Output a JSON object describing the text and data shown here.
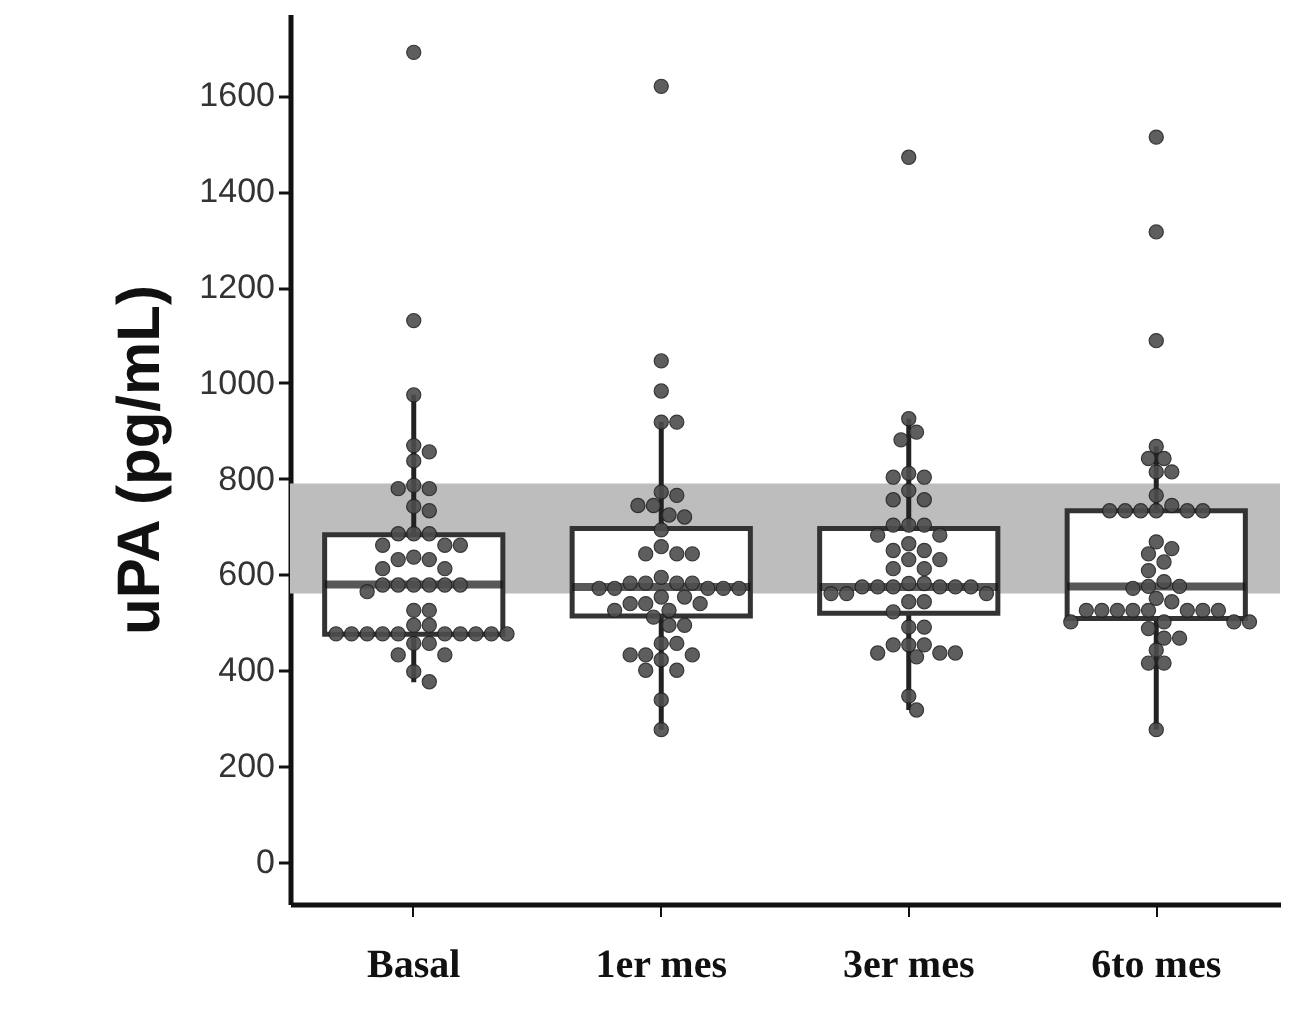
{
  "chart_data": {
    "type": "box",
    "ylabel": "uPA (pg/mL)",
    "categories": [
      "Basal",
      "1er mes",
      "3er mes",
      "6to mes"
    ],
    "boxes": [
      {
        "low": 375,
        "q1": 475,
        "median": 579,
        "q3": 683,
        "high": 975
      },
      {
        "low": 276,
        "q1": 513,
        "median": 574,
        "q3": 696,
        "high": 918
      },
      {
        "low": 317,
        "q1": 519,
        "median": 574,
        "q3": 696,
        "high": 925
      },
      {
        "low": 276,
        "q1": 508,
        "median": 575,
        "q3": 733,
        "high": 867
      }
    ],
    "series": [
      {
        "type": "scatter",
        "color": "#4d4d4d",
        "x": [
          "Basal",
          "Basal",
          "Basal",
          "Basal",
          "Basal",
          "Basal",
          "Basal",
          "Basal",
          "Basal",
          "Basal",
          "Basal",
          "Basal",
          "Basal",
          "Basal",
          "Basal",
          "Basal",
          "Basal",
          "Basal",
          "Basal",
          "Basal",
          "Basal",
          "Basal",
          "Basal",
          "Basal",
          "Basal",
          "Basal",
          "Basal",
          "Basal",
          "Basal",
          "Basal",
          "Basal",
          "Basal",
          "Basal",
          "Basal",
          "Basal",
          "Basal",
          "Basal",
          "Basal",
          "Basal",
          "Basal",
          "Basal",
          "Basal",
          "Basal",
          "Basal",
          "Basal",
          "Basal",
          "Basal",
          "Basal",
          "Basal"
        ],
        "values": [
          1690,
          1130,
          975,
          869,
          856,
          837,
          786,
          779,
          779,
          742,
          733,
          685,
          685,
          685,
          661,
          661,
          661,
          636,
          631,
          631,
          612,
          612,
          578,
          578,
          578,
          578,
          578,
          578,
          564,
          525,
          525,
          494,
          494,
          476,
          476,
          476,
          476,
          476,
          476,
          476,
          476,
          476,
          476,
          456,
          456,
          432,
          432,
          397,
          376
        ]
      },
      {
        "type": "scatter",
        "color": "#4d4d4d",
        "x": [
          "1er mes",
          "1er mes",
          "1er mes",
          "1er mes",
          "1er mes",
          "1er mes",
          "1er mes",
          "1er mes",
          "1er mes",
          "1er mes",
          "1er mes",
          "1er mes",
          "1er mes",
          "1er mes",
          "1er mes",
          "1er mes",
          "1er mes",
          "1er mes",
          "1er mes",
          "1er mes",
          "1er mes",
          "1er mes",
          "1er mes",
          "1er mes",
          "1er mes",
          "1er mes",
          "1er mes",
          "1er mes",
          "1er mes",
          "1er mes",
          "1er mes",
          "1er mes",
          "1er mes",
          "1er mes",
          "1er mes",
          "1er mes",
          "1er mes",
          "1er mes",
          "1er mes",
          "1er mes",
          "1er mes",
          "1er mes",
          "1er mes",
          "1er mes",
          "1er mes",
          "1er mes"
        ],
        "values": [
          1619,
          1046,
          983,
          918,
          918,
          772,
          765,
          744,
          744,
          724,
          720,
          693,
          658,
          643,
          643,
          643,
          594,
          582,
          582,
          582,
          582,
          571,
          571,
          571,
          571,
          571,
          553,
          553,
          539,
          539,
          539,
          525,
          525,
          511,
          494,
          494,
          456,
          456,
          432,
          432,
          432,
          422,
          400,
          400,
          338,
          276
        ]
      },
      {
        "type": "scatter",
        "color": "#4d4d4d",
        "x": [
          "3er mes",
          "3er mes",
          "3er mes",
          "3er mes",
          "3er mes",
          "3er mes",
          "3er mes",
          "3er mes",
          "3er mes",
          "3er mes",
          "3er mes",
          "3er mes",
          "3er mes",
          "3er mes",
          "3er mes",
          "3er mes",
          "3er mes",
          "3er mes",
          "3er mes",
          "3er mes",
          "3er mes",
          "3er mes",
          "3er mes",
          "3er mes",
          "3er mes",
          "3er mes",
          "3er mes",
          "3er mes",
          "3er mes",
          "3er mes",
          "3er mes",
          "3er mes",
          "3er mes",
          "3er mes",
          "3er mes",
          "3er mes",
          "3er mes",
          "3er mes",
          "3er mes",
          "3er mes",
          "3er mes",
          "3er mes",
          "3er mes",
          "3er mes",
          "3er mes",
          "3er mes",
          "3er mes"
        ],
        "values": [
          1471,
          925,
          897,
          881,
          811,
          803,
          803,
          775,
          756,
          756,
          703,
          703,
          703,
          682,
          682,
          664,
          650,
          650,
          631,
          631,
          612,
          612,
          581,
          581,
          574,
          574,
          574,
          574,
          574,
          574,
          560,
          560,
          560,
          543,
          543,
          522,
          490,
          490,
          453,
          453,
          453,
          436,
          436,
          436,
          428,
          346,
          317
        ]
      },
      {
        "type": "scatter",
        "color": "#4d4d4d",
        "x": [
          "6to mes",
          "6to mes",
          "6to mes",
          "6to mes",
          "6to mes",
          "6to mes",
          "6to mes",
          "6to mes",
          "6to mes",
          "6to mes",
          "6to mes",
          "6to mes",
          "6to mes",
          "6to mes",
          "6to mes",
          "6to mes",
          "6to mes",
          "6to mes",
          "6to mes",
          "6to mes",
          "6to mes",
          "6to mes",
          "6to mes",
          "6to mes",
          "6to mes",
          "6to mes",
          "6to mes",
          "6to mes",
          "6to mes",
          "6to mes",
          "6to mes",
          "6to mes",
          "6to mes",
          "6to mes",
          "6to mes",
          "6to mes",
          "6to mes",
          "6to mes",
          "6to mes",
          "6to mes",
          "6to mes",
          "6to mes",
          "6to mes",
          "6to mes",
          "6to mes",
          "6to mes"
        ],
        "values": [
          1513,
          1315,
          1088,
          867,
          842,
          842,
          814,
          814,
          765,
          744,
          733,
          733,
          733,
          733,
          733,
          733,
          668,
          654,
          643,
          626,
          608,
          585,
          575,
          575,
          571,
          550,
          543,
          525,
          525,
          525,
          525,
          525,
          525,
          525,
          525,
          501,
          501,
          501,
          501,
          487,
          467,
          467,
          442,
          415,
          415,
          276
        ]
      }
    ],
    "bands": [
      {
        "axis": "y",
        "from": 560,
        "to": 790,
        "color": "#bdbdbd"
      }
    ],
    "ylim": [
      -88,
      1770
    ],
    "yticks": [
      0,
      200,
      400,
      600,
      800,
      1000,
      1200,
      1400,
      1600
    ],
    "grid": false
  }
}
